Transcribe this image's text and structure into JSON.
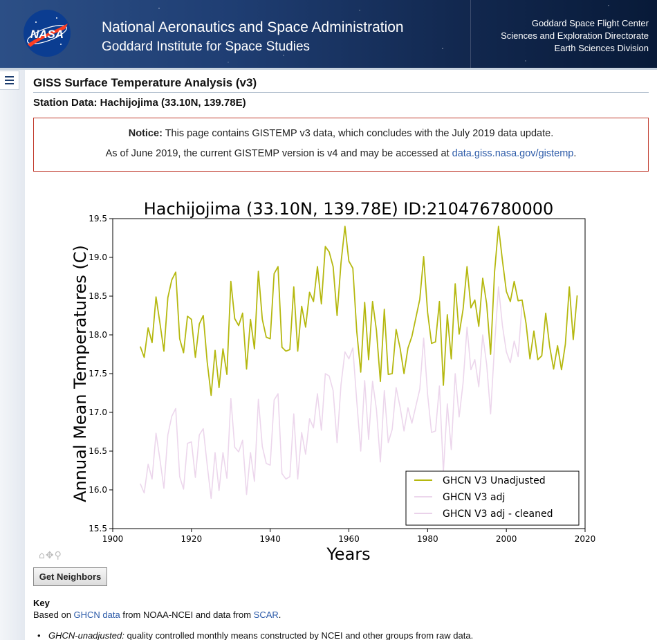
{
  "banner": {
    "agency": "National Aeronautics and Space Administration",
    "institute": "Goddard Institute for Space Studies",
    "right_lines": [
      "Goddard Space Flight Center",
      "Sciences and Exploration Directorate",
      "Earth Sciences Division"
    ],
    "logo_text": "NASA"
  },
  "page": {
    "title": "GISS Surface Temperature Analysis (v3)",
    "station": "Station Data: Hachijojima (33.10N, 139.78E)"
  },
  "notice": {
    "label": "Notice:",
    "line1": "This page contains GISTEMP v3 data, which concludes with the July 2019 data update.",
    "line2_prefix": "As of June 2019, the current GISTEMP version is v4 and may be accessed at ",
    "link": "data.giss.nasa.gov/gistemp",
    "line2_suffix": "."
  },
  "chart_data": {
    "type": "line",
    "title": "Hachijojima (33.10N, 139.78E) ID:210476780000",
    "xlabel": "Years",
    "ylabel": "Annual Mean Temperatures (C)",
    "xlim": [
      1900,
      2020
    ],
    "ylim": [
      15.5,
      19.5
    ],
    "xticks": [
      "1900",
      "1920",
      "1940",
      "1960",
      "1980",
      "2000",
      "2020"
    ],
    "yticks": [
      "15.5",
      "16.0",
      "16.5",
      "17.0",
      "17.5",
      "18.0",
      "18.5",
      "19.0",
      "19.5"
    ],
    "legend_position": "bottom-right",
    "series": [
      {
        "name": "GHCN V3 Unadjusted",
        "color": "#b5b80f",
        "x": [
          1907,
          1908,
          1909,
          1910,
          1911,
          1912,
          1913,
          1914,
          1915,
          1916,
          1917,
          1918,
          1919,
          1920,
          1921,
          1922,
          1923,
          1924,
          1925,
          1926,
          1927,
          1928,
          1929,
          1930,
          1931,
          1932,
          1933,
          1934,
          1935,
          1936,
          1937,
          1938,
          1939,
          1940,
          1941,
          1942,
          1943,
          1944,
          1945,
          1946,
          1947,
          1948,
          1949,
          1950,
          1951,
          1952,
          1953,
          1954,
          1955,
          1956,
          1957,
          1958,
          1959,
          1960,
          1961,
          1962,
          1963,
          1964,
          1965,
          1966,
          1967,
          1968,
          1969,
          1970,
          1971,
          1972,
          1973,
          1974,
          1975,
          1976,
          1977,
          1978,
          1979,
          1980,
          1981,
          1982,
          1983,
          1984,
          1985,
          1986,
          1987,
          1988,
          1989,
          1990,
          1991,
          1992,
          1993,
          1994,
          1995,
          1996,
          1997,
          1998,
          1999,
          2000,
          2001,
          2002,
          2003,
          2004,
          2005,
          2006,
          2007,
          2008,
          2009,
          2010,
          2011,
          2012,
          2013,
          2014,
          2015,
          2016,
          2017,
          2018
        ],
        "y": [
          17.85,
          17.71,
          18.09,
          17.9,
          18.49,
          18.15,
          17.79,
          18.48,
          18.71,
          18.81,
          17.95,
          17.77,
          18.24,
          18.2,
          17.71,
          18.14,
          18.25,
          17.65,
          17.22,
          17.8,
          17.32,
          17.82,
          17.49,
          18.69,
          18.21,
          18.12,
          18.28,
          17.56,
          18.2,
          17.82,
          18.82,
          18.2,
          17.97,
          17.95,
          18.79,
          18.88,
          17.84,
          17.79,
          17.81,
          18.62,
          17.79,
          18.37,
          18.1,
          18.55,
          18.43,
          18.88,
          18.4,
          19.14,
          19.07,
          18.88,
          18.25,
          18.93,
          19.4,
          18.95,
          18.86,
          18.04,
          17.52,
          18.42,
          17.68,
          18.43,
          18.06,
          17.4,
          18.33,
          17.49,
          17.5,
          18.07,
          17.83,
          17.5,
          17.83,
          17.98,
          18.22,
          18.46,
          19.01,
          18.29,
          17.89,
          17.91,
          18.43,
          17.35,
          18.26,
          17.69,
          18.66,
          18.01,
          18.33,
          18.88,
          18.35,
          18.45,
          18.11,
          18.73,
          18.4,
          17.75,
          18.81,
          19.4,
          18.96,
          18.56,
          18.43,
          18.69,
          18.44,
          18.45,
          18.15,
          17.69,
          18.05,
          17.68,
          17.73,
          18.28,
          17.85,
          17.56,
          17.86,
          17.55,
          17.88,
          18.62,
          17.94,
          18.51
        ]
      },
      {
        "name": "GHCN V3 adj",
        "color": "#ecd6ec",
        "x": [
          1907,
          1908,
          1909,
          1910,
          1911,
          1912,
          1913,
          1914,
          1915,
          1916,
          1917,
          1918,
          1919,
          1920,
          1921,
          1922,
          1923,
          1924,
          1925,
          1926,
          1927,
          1928,
          1929,
          1930,
          1931,
          1932,
          1933,
          1934,
          1935,
          1936,
          1937,
          1938,
          1939,
          1940,
          1941,
          1942,
          1943,
          1944,
          1945,
          1946,
          1947,
          1948,
          1949,
          1950,
          1951,
          1952,
          1953,
          1954,
          1955,
          1956,
          1957,
          1958,
          1959,
          1960,
          1961,
          1962,
          1963,
          1964,
          1965,
          1966,
          1967,
          1968,
          1969,
          1970,
          1971,
          1972,
          1973,
          1974,
          1975,
          1976,
          1977,
          1978,
          1979,
          1980,
          1981,
          1982,
          1983,
          1984,
          1985,
          1986,
          1987,
          1988,
          1989,
          1990,
          1991,
          1992,
          1993,
          1994,
          1995,
          1996,
          1997,
          1998,
          1999,
          2000,
          2001,
          2002,
          2003,
          2004
        ],
        "y": [
          16.08,
          15.96,
          16.33,
          16.14,
          16.73,
          16.39,
          16.02,
          16.71,
          16.95,
          17.05,
          16.17,
          16.01,
          16.6,
          16.62,
          16.16,
          16.71,
          16.79,
          16.32,
          15.89,
          16.48,
          15.99,
          16.48,
          16.15,
          17.18,
          16.55,
          16.49,
          16.64,
          15.94,
          16.48,
          16.11,
          17.17,
          16.56,
          16.34,
          16.32,
          17.16,
          17.24,
          16.21,
          16.14,
          16.17,
          16.98,
          16.14,
          16.74,
          16.46,
          16.92,
          16.8,
          17.24,
          16.77,
          17.5,
          17.47,
          17.28,
          16.61,
          17.36,
          17.78,
          17.69,
          17.83,
          17.14,
          16.5,
          17.41,
          16.65,
          17.4,
          17.04,
          16.36,
          17.28,
          16.61,
          16.78,
          17.32,
          17.07,
          16.76,
          17.06,
          16.86,
          17.08,
          17.3,
          17.96,
          17.23,
          16.74,
          16.76,
          17.34,
          16.23,
          17.11,
          16.52,
          17.5,
          16.94,
          17.38,
          18.1,
          17.55,
          17.68,
          17.33,
          18.0,
          17.62,
          16.98,
          17.86,
          18.62,
          18.12,
          17.78,
          17.64,
          17.92,
          17.72,
          18.4
        ]
      },
      {
        "name": "GHCN V3 adj - cleaned",
        "color": "#ead2ea",
        "x": [],
        "y": []
      }
    ]
  },
  "chart_controls": {
    "toolbar_icons": "⌂✥⚲"
  },
  "neighbors_button": "Get Neighbors",
  "key": {
    "heading": "Key",
    "text_prefix": "Based on ",
    "link1": "GHCN data",
    "text_mid": " from NOAA-NCEI and data from ",
    "link2": "SCAR",
    "text_suffix": ".",
    "bullet_label": "GHCN-unadjusted:",
    "bullet_text": " quality controlled monthly means constructed by NCEI and other groups from raw data."
  }
}
